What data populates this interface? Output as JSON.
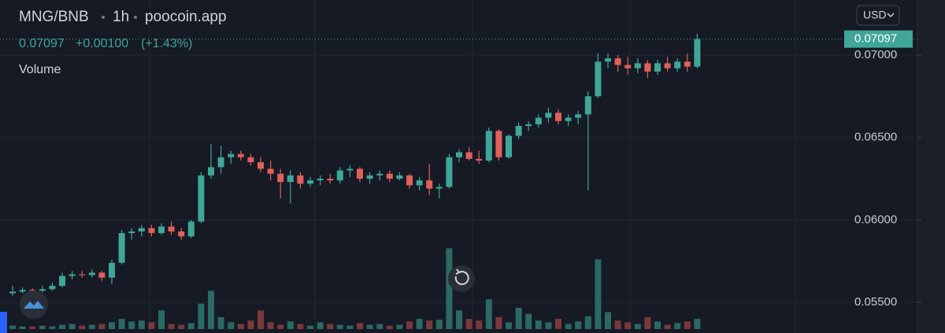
{
  "chart_data": {
    "type": "candlestick",
    "pair": "MNG/BNB",
    "interval": "1h",
    "source": "poocoin.app",
    "last_price": 0.07097,
    "change": "+0.00100",
    "change_percent": "(+1.43%)",
    "volume_label": "Volume",
    "currency": "USD",
    "up_color": "#3fa698",
    "down_color": "#e0605a",
    "volume_up_color": "#2a6964",
    "volume_down_color": "#7b393c",
    "grid": true,
    "ylim": [
      0.05314,
      0.07334
    ],
    "yticks": [
      {
        "value": 0.055,
        "label": "0.05500"
      },
      {
        "value": 0.06,
        "label": "0.06000"
      },
      {
        "value": 0.065,
        "label": "0.06500"
      },
      {
        "value": 0.07,
        "label": "0.07000"
      }
    ],
    "y2lim": [
      0,
      100
    ],
    "candles": [
      [
        0.05555,
        0.056,
        0.0554,
        0.05565
      ],
      [
        0.05565,
        0.0559,
        0.05555,
        0.05575
      ],
      [
        0.05575,
        0.05585,
        0.0555,
        0.0557
      ],
      [
        0.0557,
        0.056,
        0.0556,
        0.0558
      ],
      [
        0.0558,
        0.0562,
        0.0557,
        0.056
      ],
      [
        0.056,
        0.0568,
        0.0559,
        0.0566
      ],
      [
        0.0566,
        0.0569,
        0.0564,
        0.0567
      ],
      [
        0.0567,
        0.0569,
        0.0565,
        0.05665
      ],
      [
        0.05665,
        0.057,
        0.0565,
        0.0568
      ],
      [
        0.0568,
        0.0569,
        0.0563,
        0.0565
      ],
      [
        0.0565,
        0.0576,
        0.0561,
        0.0574
      ],
      [
        0.0574,
        0.0594,
        0.0573,
        0.0592
      ],
      [
        0.0592,
        0.0595,
        0.0588,
        0.0593
      ],
      [
        0.0593,
        0.0597,
        0.059,
        0.0595
      ],
      [
        0.0595,
        0.0597,
        0.059,
        0.0592
      ],
      [
        0.0592,
        0.0598,
        0.0591,
        0.0596
      ],
      [
        0.0596,
        0.0599,
        0.0591,
        0.0593
      ],
      [
        0.0593,
        0.0595,
        0.0588,
        0.059
      ],
      [
        0.059,
        0.06,
        0.0589,
        0.0599
      ],
      [
        0.0599,
        0.0629,
        0.0598,
        0.0627
      ],
      [
        0.0627,
        0.0646,
        0.0625,
        0.0632
      ],
      [
        0.0632,
        0.0645,
        0.0628,
        0.0638
      ],
      [
        0.0638,
        0.0642,
        0.0634,
        0.064
      ],
      [
        0.064,
        0.0642,
        0.0636,
        0.0638
      ],
      [
        0.0638,
        0.064,
        0.0633,
        0.0635
      ],
      [
        0.0635,
        0.0638,
        0.0629,
        0.0631
      ],
      [
        0.0631,
        0.0636,
        0.0624,
        0.0628
      ],
      [
        0.0628,
        0.0631,
        0.0613,
        0.0623
      ],
      [
        0.0623,
        0.063,
        0.061,
        0.0627
      ],
      [
        0.0627,
        0.0629,
        0.0619,
        0.0622
      ],
      [
        0.0622,
        0.0626,
        0.062,
        0.0624
      ],
      [
        0.0624,
        0.0627,
        0.0621,
        0.0625
      ],
      [
        0.0625,
        0.0628,
        0.0622,
        0.0624
      ],
      [
        0.0624,
        0.0632,
        0.0622,
        0.063
      ],
      [
        0.063,
        0.0633,
        0.0626,
        0.0631
      ],
      [
        0.0631,
        0.0632,
        0.0623,
        0.0625
      ],
      [
        0.0625,
        0.0629,
        0.0622,
        0.0627
      ],
      [
        0.0627,
        0.063,
        0.0624,
        0.0628
      ],
      [
        0.0628,
        0.063,
        0.0623,
        0.0625
      ],
      [
        0.0625,
        0.0629,
        0.0624,
        0.0627
      ],
      [
        0.0627,
        0.0628,
        0.0619,
        0.0621
      ],
      [
        0.0621,
        0.0626,
        0.0618,
        0.0624
      ],
      [
        0.0624,
        0.0634,
        0.0615,
        0.0619
      ],
      [
        0.0619,
        0.0622,
        0.0613,
        0.062
      ],
      [
        0.062,
        0.064,
        0.0619,
        0.0638
      ],
      [
        0.0638,
        0.0643,
        0.0635,
        0.0641
      ],
      [
        0.0641,
        0.0644,
        0.0636,
        0.0637
      ],
      [
        0.0637,
        0.0642,
        0.0634,
        0.0636
      ],
      [
        0.0636,
        0.0656,
        0.0635,
        0.0654
      ],
      [
        0.0654,
        0.0655,
        0.0636,
        0.0638
      ],
      [
        0.0638,
        0.0652,
        0.0637,
        0.0651
      ],
      [
        0.0651,
        0.0659,
        0.0649,
        0.0657
      ],
      [
        0.0657,
        0.066,
        0.0654,
        0.0658
      ],
      [
        0.0658,
        0.0664,
        0.0656,
        0.0662
      ],
      [
        0.0662,
        0.0668,
        0.0659,
        0.0665
      ],
      [
        0.0665,
        0.0667,
        0.0658,
        0.066
      ],
      [
        0.066,
        0.0664,
        0.0657,
        0.0662
      ],
      [
        0.0662,
        0.0666,
        0.0658,
        0.0664
      ],
      [
        0.0664,
        0.0678,
        0.0618,
        0.0675
      ],
      [
        0.0675,
        0.0701,
        0.0674,
        0.0696
      ],
      [
        0.0696,
        0.0701,
        0.0692,
        0.0698
      ],
      [
        0.0698,
        0.07,
        0.069,
        0.0694
      ],
      [
        0.0694,
        0.0699,
        0.0688,
        0.0692
      ],
      [
        0.0692,
        0.0698,
        0.0689,
        0.0695
      ],
      [
        0.0695,
        0.0697,
        0.0686,
        0.069
      ],
      [
        0.069,
        0.0697,
        0.0688,
        0.0695
      ],
      [
        0.0695,
        0.0699,
        0.069,
        0.0692
      ],
      [
        0.0692,
        0.0698,
        0.069,
        0.0696
      ],
      [
        0.0696,
        0.0701,
        0.069,
        0.0693
      ],
      [
        0.0693,
        0.0713,
        0.0692,
        0.07097
      ]
    ],
    "volumes": [
      4,
      3,
      3,
      4,
      3,
      5,
      6,
      4,
      5,
      6,
      8,
      12,
      9,
      10,
      8,
      22,
      6,
      5,
      7,
      30,
      45,
      14,
      8,
      6,
      10,
      22,
      8,
      5,
      9,
      6,
      4,
      8,
      6,
      5,
      4,
      7,
      5,
      6,
      4,
      5,
      9,
      12,
      10,
      11,
      95,
      22,
      12,
      10,
      35,
      14,
      8,
      25,
      18,
      10,
      8,
      12,
      6,
      9,
      15,
      82,
      20,
      10,
      8,
      6,
      14,
      9,
      5,
      7,
      9,
      12
    ]
  }
}
